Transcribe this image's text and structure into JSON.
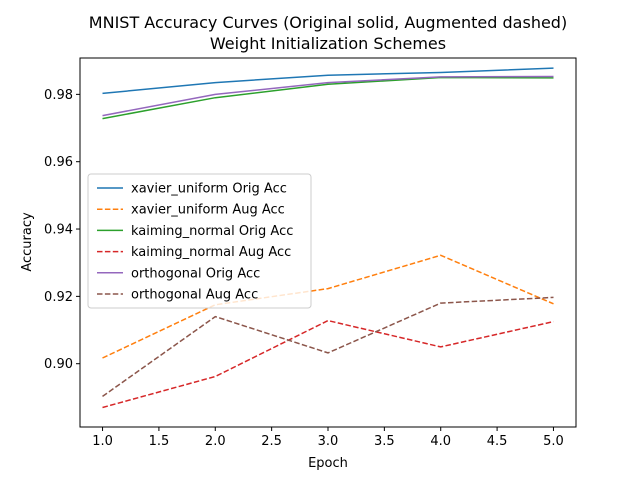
{
  "chart_data": {
    "type": "line",
    "title_line1": "MNIST Accuracy Curves (Original solid, Augmented dashed)",
    "title_line2": "Weight Initialization Schemes",
    "xlabel": "Epoch",
    "ylabel": "Accuracy",
    "xlim": [
      0.8,
      5.2
    ],
    "ylim": [
      0.8812,
      0.9908
    ],
    "x_ticks": [
      "1.0",
      "1.5",
      "2.0",
      "2.5",
      "3.0",
      "3.5",
      "4.0",
      "4.5",
      "5.0"
    ],
    "y_ticks": [
      "0.90",
      "0.92",
      "0.94",
      "0.96",
      "0.98"
    ],
    "grid": false,
    "legend_position": "center-left",
    "x": [
      1,
      2,
      3,
      4,
      5
    ],
    "series": [
      {
        "name": "xavier_uniform Orig Acc",
        "color": "#1f77b4",
        "style": "solid",
        "values": [
          0.9803,
          0.9835,
          0.9857,
          0.9865,
          0.9878
        ]
      },
      {
        "name": "xavier_uniform Aug Acc",
        "color": "#ff7f0e",
        "style": "dashed",
        "values": [
          0.9017,
          0.9175,
          0.9223,
          0.9322,
          0.9178
        ]
      },
      {
        "name": "kaiming_normal Orig Acc",
        "color": "#2ca02c",
        "style": "solid",
        "values": [
          0.9728,
          0.979,
          0.983,
          0.985,
          0.9849
        ]
      },
      {
        "name": "kaiming_normal Aug Acc",
        "color": "#d62728",
        "style": "dashed",
        "values": [
          0.887,
          0.8962,
          0.9128,
          0.905,
          0.9125
        ]
      },
      {
        "name": "orthogonal Orig Acc",
        "color": "#9467bd",
        "style": "solid",
        "values": [
          0.9737,
          0.98,
          0.9835,
          0.9852,
          0.9853
        ]
      },
      {
        "name": "orthogonal Aug Acc",
        "color": "#8c564b",
        "style": "dashed",
        "values": [
          0.8903,
          0.914,
          0.9032,
          0.918,
          0.9197
        ]
      }
    ]
  }
}
